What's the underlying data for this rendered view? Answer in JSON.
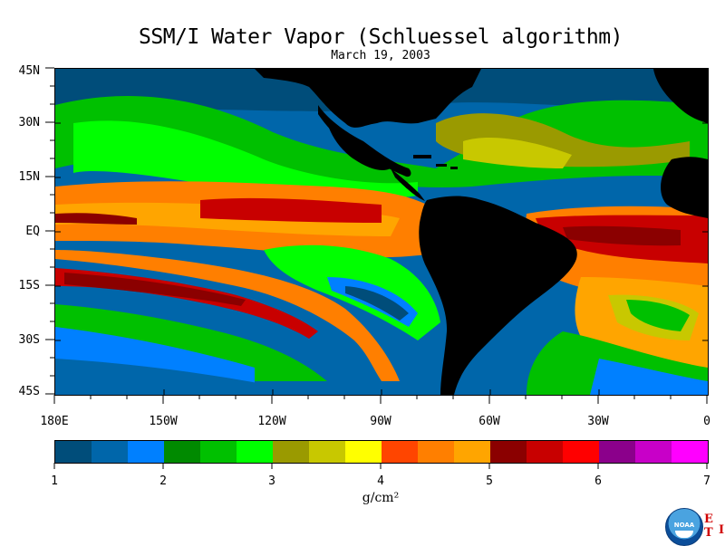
{
  "title": "SSM/I Water Vapor (Schluessel algorithm)",
  "subtitle": "March 19, 2003",
  "map": {
    "lat_labels": [
      "45N",
      "30N",
      "15N",
      "EQ",
      "15S",
      "30S",
      "45S"
    ],
    "lon_labels": [
      "180E",
      "150W",
      "120W",
      "90W",
      "60W",
      "30W",
      "0"
    ],
    "extent": {
      "lon": [
        -180,
        0
      ],
      "lat": [
        -45,
        45
      ]
    },
    "land_color": "#000000"
  },
  "colorbar": {
    "tick_labels": [
      "1",
      "2",
      "3",
      "4",
      "5",
      "6",
      "7"
    ],
    "unit": "g/cm²",
    "colors": [
      "#004d7a",
      "#0066aa",
      "#0080ff",
      "#008a00",
      "#00c000",
      "#00ff00",
      "#9a9a00",
      "#c8c800",
      "#ffff00",
      "#ff4500",
      "#ff7f00",
      "#ffa500",
      "#8b0000",
      "#c80000",
      "#ff0000",
      "#8b008b",
      "#c800c8",
      "#ff00ff"
    ]
  },
  "logo": {
    "text": "NOAA",
    "corner_mark_1": "E T",
    "corner_mark_2": "I"
  }
}
